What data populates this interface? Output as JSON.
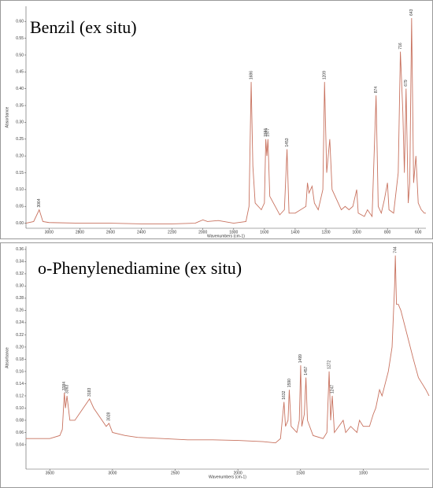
{
  "chart_data": [
    {
      "type": "line",
      "title": "Benzil (ex situ)",
      "x_label": "Wavenumbers (cm-1)",
      "y_label": "Absorbance",
      "xlim": [
        3150,
        550
      ],
      "ylim": [
        -0.015,
        0.645
      ],
      "xticks": [
        3000,
        2800,
        2600,
        2400,
        2200,
        2000,
        1800,
        1600,
        1400,
        1200,
        1000,
        800,
        600
      ],
      "yticks": [
        {
          "value": 0,
          "label": "0.00"
        },
        {
          "value": 0.05,
          "label": "0.05"
        },
        {
          "value": 0.1,
          "label": "0.10"
        },
        {
          "value": 0.15,
          "label": "0.15"
        },
        {
          "value": 0.2,
          "label": "0.20"
        },
        {
          "value": 0.25,
          "label": "0.25"
        },
        {
          "value": 0.3,
          "label": "0.30"
        },
        {
          "value": 0.35,
          "label": "0.35"
        },
        {
          "value": 0.4,
          "label": "0.40"
        },
        {
          "value": 0.45,
          "label": "0.45"
        },
        {
          "value": 0.5,
          "label": "0.50"
        },
        {
          "value": 0.55,
          "label": "0.55"
        },
        {
          "value": 0.6,
          "label": "0.60"
        }
      ],
      "series": [
        {
          "color": "#c8725f",
          "x": [
            3150,
            3100,
            3064,
            3040,
            3000,
            2800,
            2600,
            2400,
            2200,
            2050,
            2000,
            1970,
            1900,
            1800,
            1720,
            1700,
            1686,
            1675,
            1660,
            1620,
            1600,
            1591,
            1584,
            1577,
            1565,
            1500,
            1470,
            1453,
            1440,
            1400,
            1330,
            1320,
            1310,
            1290,
            1275,
            1250,
            1220,
            1209,
            1195,
            1175,
            1160,
            1100,
            1075,
            1050,
            1025,
            1000,
            990,
            950,
            930,
            900,
            874,
            860,
            840,
            820,
            800,
            790,
            760,
            730,
            716,
            700,
            690,
            679,
            665,
            655,
            643,
            630,
            615,
            600,
            580,
            560,
            550
          ],
          "values": [
            0.0,
            0.005,
            0.04,
            0.005,
            0.002,
            0.0,
            0.0,
            -0.002,
            -0.002,
            0.0,
            0.01,
            0.005,
            0.008,
            0.0,
            0.005,
            0.05,
            0.42,
            0.17,
            0.06,
            0.04,
            0.06,
            0.25,
            0.2,
            0.25,
            0.08,
            0.025,
            0.04,
            0.22,
            0.03,
            0.03,
            0.05,
            0.12,
            0.09,
            0.11,
            0.06,
            0.04,
            0.1,
            0.42,
            0.15,
            0.25,
            0.1,
            0.04,
            0.05,
            0.04,
            0.05,
            0.1,
            0.03,
            0.02,
            0.04,
            0.02,
            0.38,
            0.05,
            0.03,
            0.07,
            0.12,
            0.04,
            0.03,
            0.15,
            0.51,
            0.33,
            0.15,
            0.4,
            0.06,
            0.12,
            0.61,
            0.12,
            0.2,
            0.06,
            0.04,
            0.03,
            0.03
          ]
        }
      ],
      "annotations": [
        {
          "x": 3064,
          "y": 0.04,
          "text": "3064"
        },
        {
          "x": 1686,
          "y": 0.42,
          "text": "1686"
        },
        {
          "x": 1591,
          "y": 0.25,
          "text": "1591"
        },
        {
          "x": 1577,
          "y": 0.25,
          "text": "1577"
        },
        {
          "x": 1453,
          "y": 0.22,
          "text": "1453"
        },
        {
          "x": 1209,
          "y": 0.42,
          "text": "1209"
        },
        {
          "x": 874,
          "y": 0.38,
          "text": "874"
        },
        {
          "x": 716,
          "y": 0.51,
          "text": "716"
        },
        {
          "x": 679,
          "y": 0.4,
          "text": "679"
        },
        {
          "x": 643,
          "y": 0.61,
          "text": "643"
        }
      ]
    },
    {
      "type": "line",
      "title": "o-Phenylenediamine (ex situ)",
      "x_label": "Wavenumbers (cm-1)",
      "y_label": "Absorbance",
      "xlim": [
        3690,
        475
      ],
      "ylim": [
        0,
        0.365
      ],
      "xticks": [
        3500,
        3000,
        2500,
        2000,
        1500,
        1000
      ],
      "yticks": [
        {
          "value": 0.04,
          "label": "0.04"
        },
        {
          "value": 0.06,
          "label": "0.06"
        },
        {
          "value": 0.08,
          "label": "0.08"
        },
        {
          "value": 0.1,
          "label": "0.10"
        },
        {
          "value": 0.12,
          "label": "0.12"
        },
        {
          "value": 0.14,
          "label": "0.14"
        },
        {
          "value": 0.16,
          "label": "0.16"
        },
        {
          "value": 0.18,
          "label": "0.18"
        },
        {
          "value": 0.2,
          "label": "0.20"
        },
        {
          "value": 0.22,
          "label": "0.22"
        },
        {
          "value": 0.24,
          "label": "0.24"
        },
        {
          "value": 0.26,
          "label": "0.26"
        },
        {
          "value": 0.28,
          "label": "0.28"
        },
        {
          "value": 0.3,
          "label": "0.30"
        },
        {
          "value": 0.32,
          "label": "0.32"
        },
        {
          "value": 0.34,
          "label": "0.34"
        },
        {
          "value": 0.36,
          "label": "0.36"
        }
      ],
      "series": [
        {
          "color": "#c8725f",
          "x": [
            3690,
            3600,
            3500,
            3420,
            3400,
            3384,
            3375,
            3363,
            3340,
            3300,
            3250,
            3200,
            3183,
            3150,
            3100,
            3050,
            3028,
            3000,
            2900,
            2800,
            2600,
            2400,
            2200,
            2000,
            1900,
            1800,
            1700,
            1660,
            1632,
            1620,
            1600,
            1590,
            1575,
            1530,
            1510,
            1499,
            1490,
            1470,
            1457,
            1445,
            1400,
            1320,
            1290,
            1272,
            1260,
            1247,
            1230,
            1160,
            1140,
            1100,
            1050,
            1030,
            1000,
            950,
            920,
            900,
            870,
            850,
            800,
            770,
            750,
            744,
            735,
            720,
            700,
            650,
            600,
            560,
            530,
            500,
            475
          ],
          "values": [
            0.05,
            0.05,
            0.05,
            0.055,
            0.065,
            0.125,
            0.1,
            0.12,
            0.08,
            0.08,
            0.095,
            0.11,
            0.115,
            0.1,
            0.085,
            0.07,
            0.075,
            0.06,
            0.055,
            0.052,
            0.05,
            0.048,
            0.048,
            0.047,
            0.046,
            0.045,
            0.043,
            0.05,
            0.11,
            0.07,
            0.08,
            0.13,
            0.07,
            0.06,
            0.08,
            0.17,
            0.07,
            0.09,
            0.15,
            0.08,
            0.055,
            0.05,
            0.06,
            0.16,
            0.08,
            0.12,
            0.06,
            0.08,
            0.06,
            0.07,
            0.06,
            0.08,
            0.07,
            0.07,
            0.09,
            0.1,
            0.13,
            0.12,
            0.16,
            0.2,
            0.3,
            0.35,
            0.27,
            0.27,
            0.26,
            0.22,
            0.18,
            0.15,
            0.14,
            0.13,
            0.12
          ]
        }
      ],
      "annotations": [
        {
          "x": 3384,
          "y": 0.125,
          "text": "3384"
        },
        {
          "x": 3363,
          "y": 0.12,
          "text": "3363"
        },
        {
          "x": 3183,
          "y": 0.115,
          "text": "3183"
        },
        {
          "x": 3028,
          "y": 0.075,
          "text": "3028"
        },
        {
          "x": 1632,
          "y": 0.11,
          "text": "1632"
        },
        {
          "x": 1590,
          "y": 0.13,
          "text": "1590"
        },
        {
          "x": 1499,
          "y": 0.17,
          "text": "1499"
        },
        {
          "x": 1457,
          "y": 0.15,
          "text": "1457"
        },
        {
          "x": 1272,
          "y": 0.16,
          "text": "1272"
        },
        {
          "x": 1247,
          "y": 0.12,
          "text": "1247"
        },
        {
          "x": 744,
          "y": 0.35,
          "text": "744"
        }
      ]
    }
  ]
}
